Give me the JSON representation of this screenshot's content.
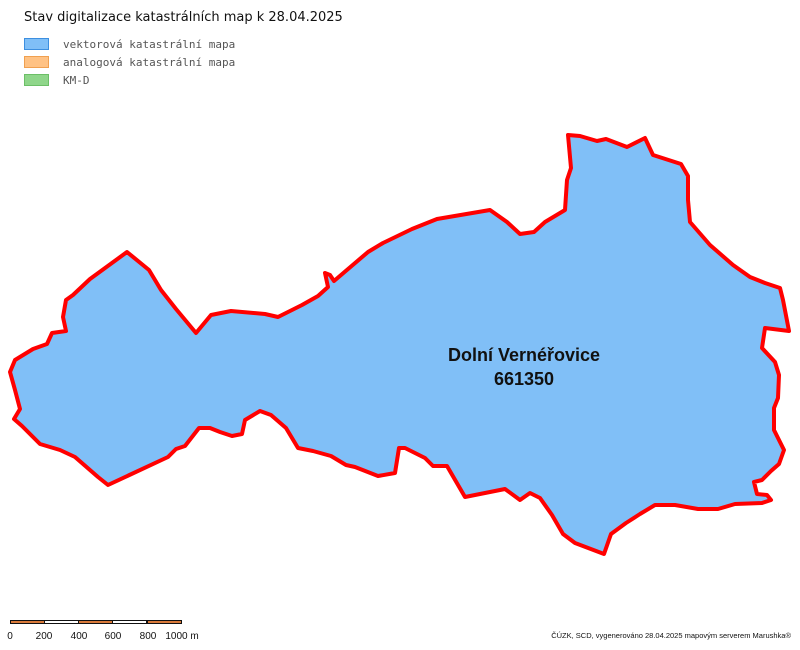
{
  "title": "Stav digitalizace katastrálních map k 28.04.2025",
  "legend": [
    {
      "label": "vektorová katastrální mapa",
      "fill": "#80BFF7",
      "stroke": "#3D8FE0"
    },
    {
      "label": "analogová katastrální mapa",
      "fill": "#FFC284",
      "stroke": "#F0A050"
    },
    {
      "label": "KM-D",
      "fill": "#8FD68A",
      "stroke": "#6CBF67"
    }
  ],
  "colors": {
    "territory_fill": "#80BFF7",
    "territory_border": "#FF0000",
    "scale_dark": "#D97A3A",
    "scale_light": "#FFFFFF"
  },
  "territory": {
    "name": "Dolní Vernéřovice",
    "code": "661350"
  },
  "scale": {
    "ticks": [
      "0",
      "200",
      "400",
      "600",
      "800",
      "1000 m"
    ]
  },
  "credits": "ČÚZK, SCD, vygenerováno 28.04.2025 mapovým serverem Marushka®"
}
